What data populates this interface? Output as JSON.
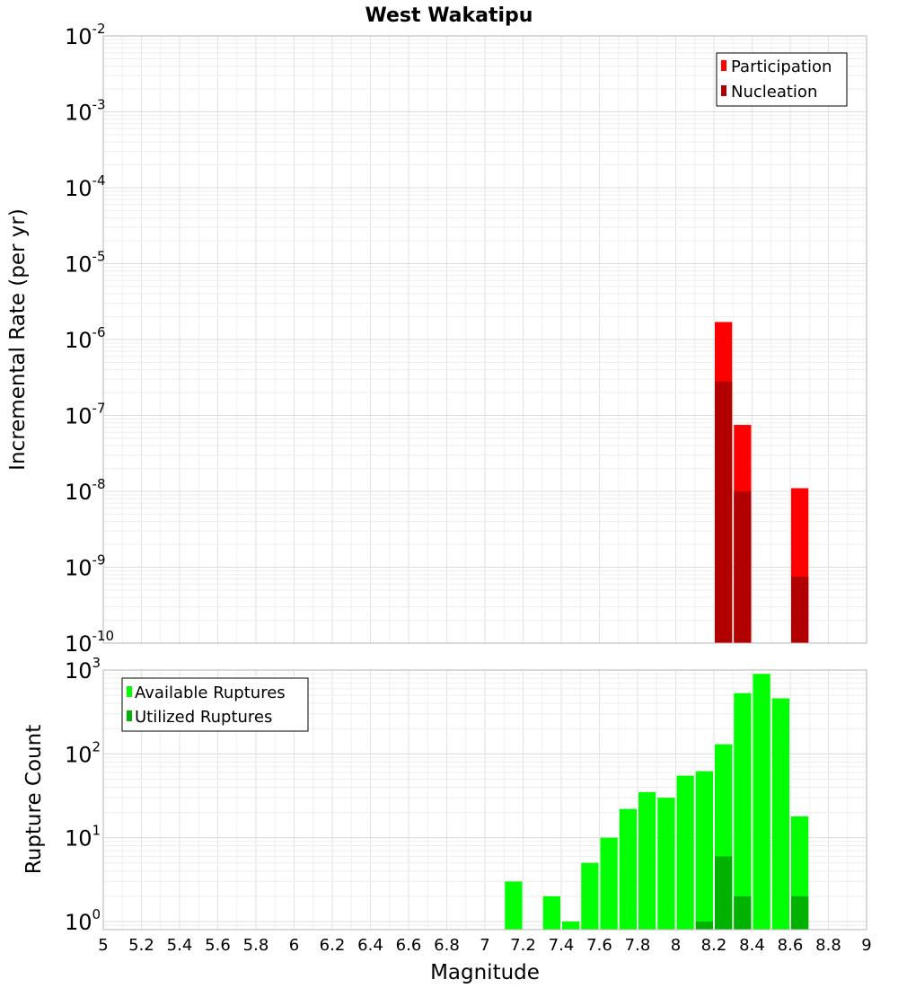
{
  "chart_data": [
    {
      "type": "bar",
      "title": "West Wakatipu",
      "xlabel": "",
      "ylabel": "Incremental Rate (per yr)",
      "yscale": "log",
      "xlim": [
        5,
        9
      ],
      "ylim": [
        1e-10,
        0.01
      ],
      "bin_width": 0.1,
      "grid": true,
      "legend_position": "top-right",
      "y_ticks": [
        {
          "base": "10",
          "exp": "-10"
        },
        {
          "base": "10",
          "exp": "-9"
        },
        {
          "base": "10",
          "exp": "-8"
        },
        {
          "base": "10",
          "exp": "-7"
        },
        {
          "base": "10",
          "exp": "-6"
        },
        {
          "base": "10",
          "exp": "-5"
        },
        {
          "base": "10",
          "exp": "-4"
        },
        {
          "base": "10",
          "exp": "-3"
        },
        {
          "base": "10",
          "exp": "-2"
        }
      ],
      "series": [
        {
          "name": "Participation",
          "color": "#ff0000",
          "x": [
            8.25,
            8.35,
            8.65
          ],
          "values": [
            1.7e-06,
            7.5e-08,
            1.1e-08
          ]
        },
        {
          "name": "Nucleation",
          "color": "#b20000",
          "x": [
            8.25,
            8.35,
            8.65
          ],
          "values": [
            2.8e-07,
            1e-08,
            7.5e-10
          ]
        }
      ]
    },
    {
      "type": "bar",
      "title": "",
      "xlabel": "Magnitude",
      "ylabel": "Rupture Count",
      "yscale": "log",
      "xlim": [
        5,
        9
      ],
      "ylim": [
        0.8,
        1000
      ],
      "bin_width": 0.1,
      "grid": true,
      "legend_position": "top-left",
      "x_tick_labels": [
        "5",
        "5.2",
        "5.4",
        "5.6",
        "5.8",
        "6",
        "6.2",
        "6.4",
        "6.6",
        "6.8",
        "7",
        "7.2",
        "7.4",
        "7.6",
        "7.8",
        "8",
        "8.2",
        "8.4",
        "8.6",
        "8.8",
        "9"
      ],
      "y_ticks": [
        {
          "base": "10",
          "exp": "0"
        },
        {
          "base": "10",
          "exp": "1"
        },
        {
          "base": "10",
          "exp": "2"
        },
        {
          "base": "10",
          "exp": "3"
        }
      ],
      "series": [
        {
          "name": "Available Ruptures",
          "color": "#00ff00",
          "x": [
            7.15,
            7.35,
            7.45,
            7.55,
            7.65,
            7.75,
            7.85,
            7.95,
            8.05,
            8.15,
            8.25,
            8.35,
            8.45,
            8.55,
            8.65
          ],
          "values": [
            3,
            2,
            1,
            5,
            10,
            22,
            35,
            30,
            55,
            62,
            130,
            530,
            900,
            460,
            18
          ]
        },
        {
          "name": "Utilized Ruptures",
          "color": "#00b200",
          "x": [
            8.15,
            8.25,
            8.35,
            8.65
          ],
          "values": [
            1,
            6,
            2,
            2
          ]
        }
      ]
    }
  ]
}
